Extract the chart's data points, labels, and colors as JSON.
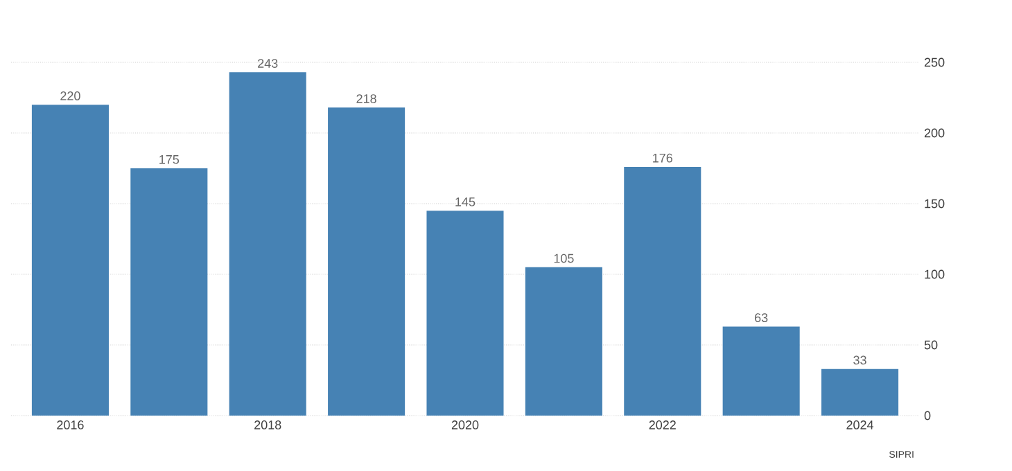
{
  "chart_data": {
    "type": "bar",
    "categories": [
      "2016",
      null,
      "2018",
      null,
      "2020",
      null,
      "2022",
      null,
      "2024"
    ],
    "values": [
      220,
      175,
      243,
      218,
      145,
      105,
      176,
      63,
      33
    ],
    "color": "#4682b4",
    "ylim": [
      0,
      250
    ],
    "yticks": [
      0,
      50,
      100,
      150,
      200,
      250
    ],
    "grid": "y",
    "data_labels": true,
    "annotations": [
      "SIPRI"
    ]
  }
}
